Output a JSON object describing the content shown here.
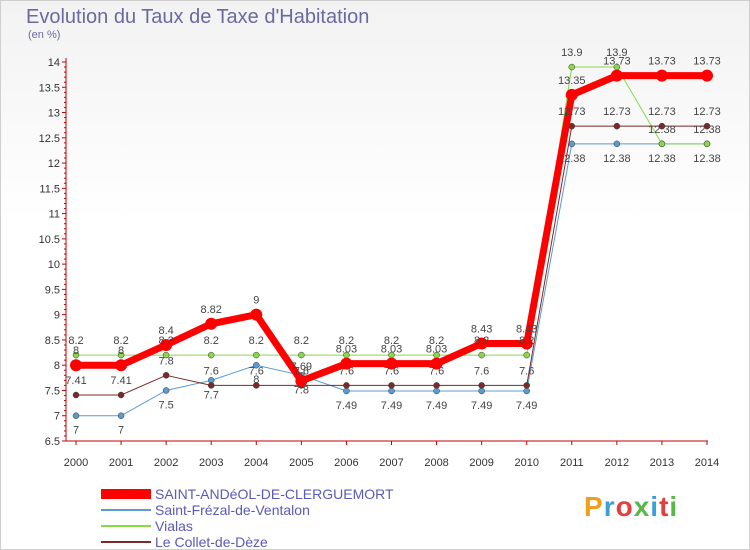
{
  "header": {
    "title": "Evolution du Taux de Taxe d'Habitation",
    "unit": "(en %)"
  },
  "logo": {
    "text": "Proxiti",
    "colors": [
      "#f0a020",
      "#3aa0d8",
      "#e04040",
      "#58b848",
      "#3aa0d8",
      "#e04040",
      "#58b848"
    ]
  },
  "chart_data": {
    "type": "line",
    "title": "Evolution du Taux de Taxe d'Habitation",
    "ylabel": "(en %)",
    "xlabel": "",
    "x": [
      "2000",
      "2001",
      "2002",
      "2003",
      "2004",
      "2005",
      "2006",
      "2007",
      "2008",
      "2009",
      "2010",
      "2011",
      "2012",
      "2013",
      "2014"
    ],
    "ylim": [
      6.5,
      14
    ],
    "yticks": [
      "6.5",
      "7",
      "7.5",
      "8",
      "8.5",
      "9",
      "9.5",
      "10",
      "10.5",
      "11",
      "11.5",
      "12",
      "12.5",
      "13",
      "13.5",
      "14"
    ],
    "grid": false,
    "series": [
      {
        "name": "SAINT-ANDéOL-DE-CLERGUEMORT",
        "color": "#ff0000",
        "width": 7,
        "values": [
          8,
          8,
          8.4,
          8.82,
          9,
          7.69,
          8.03,
          8.03,
          8.03,
          8.43,
          8.43,
          13.35,
          13.73,
          13.73,
          13.73
        ],
        "labels": [
          "8",
          "8",
          "8.4",
          "8.82",
          "9",
          "7.69",
          "8.03",
          "8.03",
          "8.03",
          "8.43",
          "8.43",
          "13.35",
          "13.73",
          "13.73",
          "13.73"
        ]
      },
      {
        "name": "Saint-Frézal-de-Ventalon",
        "color": "#5b9bd0",
        "width": 1,
        "values": [
          7,
          7,
          7.5,
          7.7,
          8,
          7.8,
          7.49,
          7.49,
          7.49,
          7.49,
          7.49,
          12.38,
          12.38,
          12.38,
          12.38
        ],
        "labels": [
          "7",
          "7",
          "7.5",
          "7.7",
          "8",
          "7.8",
          "7.49",
          "7.49",
          "7.49",
          "7.49",
          "7.49",
          "12.38",
          "12.38",
          "12.38",
          "12.38"
        ]
      },
      {
        "name": "Vialas",
        "color": "#88d848",
        "width": 1,
        "values": [
          8.2,
          8.2,
          8.2,
          8.2,
          8.2,
          8.2,
          8.2,
          8.2,
          8.2,
          8.2,
          8.2,
          13.9,
          13.9,
          12.38,
          12.38
        ],
        "labels": [
          "8.2",
          "8.2",
          "8.2",
          "8.2",
          "8.2",
          "8.2",
          "8.2",
          "8.2",
          "8.2",
          "8.2",
          "8.2",
          "13.9",
          "13.9",
          "12.38",
          "12.38"
        ]
      },
      {
        "name": "Le Collet-de-Dèze",
        "color": "#7a2a2a",
        "width": 1,
        "values": [
          7.41,
          7.41,
          7.8,
          7.6,
          7.6,
          7.6,
          7.6,
          7.6,
          7.6,
          7.6,
          7.6,
          12.73,
          12.73,
          12.73,
          12.73
        ],
        "labels": [
          "7.41",
          "7.41",
          "7.8",
          "7.6",
          "7.6",
          "7.6",
          "7.6",
          "7.6",
          "7.6",
          "7.6",
          "7.6",
          "12.73",
          "12.73",
          "12.73",
          "12.73"
        ]
      }
    ]
  }
}
